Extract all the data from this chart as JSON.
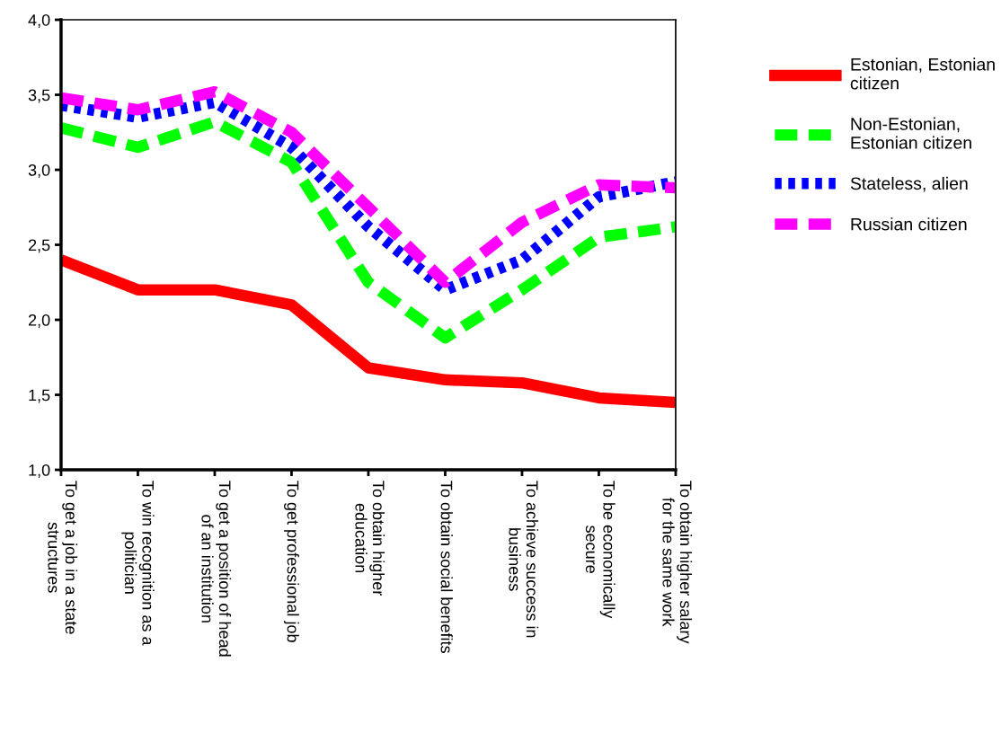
{
  "chart_data": {
    "type": "line",
    "categories": [
      "To get a job in a state\nstructures",
      "To win recognition as a\npolitician",
      "To get a position of head\nof an institution",
      "To get professional job",
      "To obtain higher\neducation",
      "To obtain social benefits",
      "To achieve success in\nbusiness",
      "To be economically\nsecure",
      "To obtain higher salary\nfor the same work"
    ],
    "series": [
      {
        "name": "Estonian, Estonian\ncitizen",
        "color": "#ff0000",
        "line_style": "solid",
        "values": [
          2.4,
          2.2,
          2.2,
          2.1,
          1.68,
          1.6,
          1.58,
          1.48,
          1.45
        ]
      },
      {
        "name": "Non-Estonian,\nEstonian citizen",
        "color": "#00ff00",
        "line_style": "dashed",
        "values": [
          3.28,
          3.15,
          3.32,
          3.05,
          2.25,
          1.88,
          2.2,
          2.55,
          2.62
        ]
      },
      {
        "name": "Stateless, alien",
        "color": "#0000ff",
        "line_style": "dotted",
        "values": [
          3.43,
          3.35,
          3.45,
          3.15,
          2.62,
          2.2,
          2.4,
          2.82,
          2.92
        ]
      },
      {
        "name": "Russian citizen",
        "color": "#ff00ff",
        "line_style": "dashed",
        "values": [
          3.48,
          3.4,
          3.52,
          3.25,
          2.75,
          2.25,
          2.65,
          2.9,
          2.88
        ]
      }
    ],
    "ylim": [
      1.0,
      4.0
    ],
    "yticks": [
      {
        "value": 1.0,
        "label": "1,0"
      },
      {
        "value": 1.5,
        "label": "1,5"
      },
      {
        "value": 2.0,
        "label": "2,0"
      },
      {
        "value": 2.5,
        "label": "2,5"
      },
      {
        "value": 3.0,
        "label": "3,0"
      },
      {
        "value": 3.5,
        "label": "3,5"
      },
      {
        "value": 4.0,
        "label": "4,0"
      }
    ],
    "grid": false,
    "legend": "right",
    "marker": "none"
  }
}
